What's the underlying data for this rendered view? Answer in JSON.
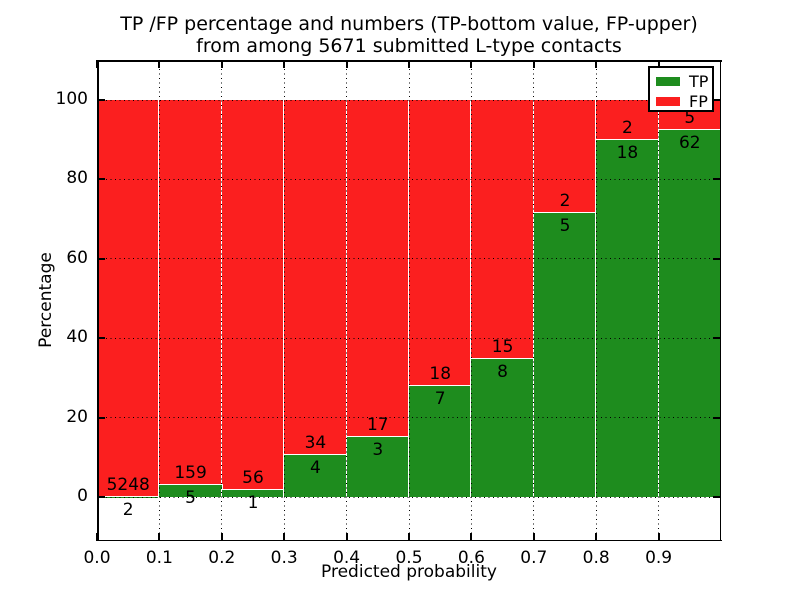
{
  "title": {
    "line1": "TP /FP percentage and numbers (TP-bottom value, FP-upper)",
    "line2": "from among 5671 submitted L-type contacts"
  },
  "axes": {
    "xlabel": "Predicted probability",
    "ylabel": "Percentage",
    "xtick_labels": [
      "0.0",
      "0.1",
      "0.2",
      "0.3",
      "0.4",
      "0.5",
      "0.6",
      "0.7",
      "0.8",
      "0.9"
    ],
    "ytick_labels": [
      "0",
      "20",
      "40",
      "60",
      "80",
      "100"
    ],
    "ytick_values": [
      0,
      20,
      40,
      60,
      80,
      100
    ]
  },
  "legend": {
    "items": [
      {
        "label": "TP",
        "color": "#1e8c1e"
      },
      {
        "label": "FP",
        "color": "#fb1f1f"
      }
    ]
  },
  "chart_data": {
    "type": "bar",
    "stacked": true,
    "normalized": "each bin stacked to 100%",
    "title": "TP /FP percentage and numbers (TP-bottom value, FP-upper) from among 5671 submitted L-type contacts",
    "xlabel": "Predicted probability",
    "ylabel": "Percentage",
    "categories": [
      "0.0-0.1",
      "0.1-0.2",
      "0.2-0.3",
      "0.3-0.4",
      "0.4-0.5",
      "0.5-0.6",
      "0.6-0.7",
      "0.7-0.8",
      "0.8-0.9",
      "0.9-1.0"
    ],
    "series": [
      {
        "name": "TP",
        "color": "#1e8c1e",
        "counts": [
          2,
          5,
          1,
          4,
          3,
          7,
          8,
          5,
          18,
          62
        ]
      },
      {
        "name": "FP",
        "color": "#fb1f1f",
        "counts": [
          5248,
          159,
          56,
          34,
          17,
          18,
          15,
          2,
          2,
          5
        ]
      }
    ],
    "tp_pct": [
      0.04,
      3.05,
      1.75,
      10.53,
      15.0,
      28.0,
      34.78,
      71.43,
      90.0,
      92.54
    ],
    "total_contacts": 5671,
    "xlim": [
      0.0,
      1.0
    ],
    "ylim": [
      -11,
      110
    ],
    "grid": "dotted, both axes, drawn above bars",
    "legend_position": "upper right",
    "annotation_rule": "FP count printed just above TP/FP boundary, TP count just below"
  }
}
